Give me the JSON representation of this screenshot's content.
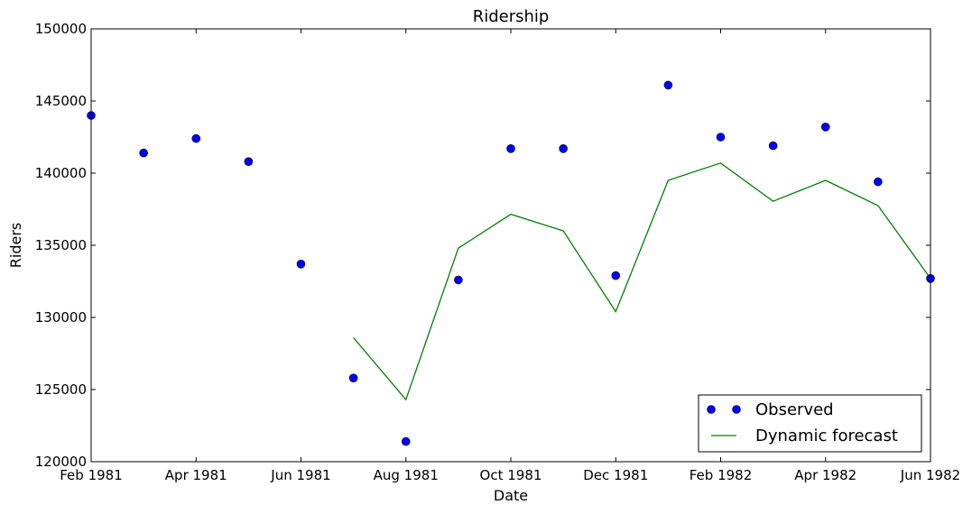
{
  "chart_data": {
    "type": "line",
    "title": "Ridership",
    "xlabel": "Date",
    "ylabel": "Riders",
    "x": [
      "Feb 1981",
      "Mar 1981",
      "Apr 1981",
      "May 1981",
      "Jun 1981",
      "Jul 1981",
      "Aug 1981",
      "Sep 1981",
      "Oct 1981",
      "Nov 1981",
      "Dec 1981",
      "Jan 1982",
      "Feb 1982",
      "Mar 1982",
      "Apr 1982",
      "May 1982",
      "Jun 1982"
    ],
    "x_ticks": [
      "Feb 1981",
      "Apr 1981",
      "Jun 1981",
      "Aug 1981",
      "Oct 1981",
      "Dec 1981",
      "Feb 1982",
      "Apr 1982",
      "Jun 1982"
    ],
    "ylim": [
      120000,
      150000
    ],
    "y_ticks": [
      120000,
      125000,
      130000,
      135000,
      140000,
      145000,
      150000
    ],
    "legend_position": "lower-right",
    "grid": false,
    "series": [
      {
        "name": "Observed",
        "style": "markers",
        "color": "#0000ff",
        "values": [
          144000,
          141400,
          142400,
          140800,
          133700,
          125800,
          121400,
          132600,
          141700,
          141700,
          132900,
          146100,
          142500,
          141900,
          143200,
          139400,
          132700
        ]
      },
      {
        "name": "Dynamic forecast",
        "style": "line",
        "color": "#008000",
        "values": [
          null,
          null,
          null,
          null,
          null,
          128600,
          124300,
          134800,
          137150,
          136000,
          130400,
          139500,
          140700,
          138050,
          139500,
          137750,
          132700
        ]
      }
    ]
  }
}
